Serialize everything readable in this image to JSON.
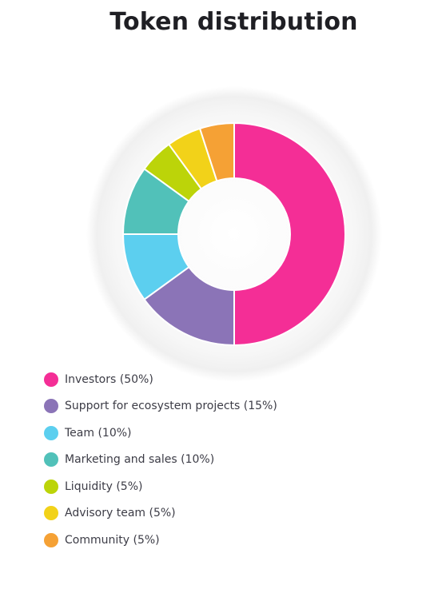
{
  "title": "Token distribution",
  "chart_data": {
    "type": "pie",
    "variant": "donut",
    "title": "Token distribution",
    "legend_position": "bottom-left",
    "slices": [
      {
        "label": "Investors (50%)",
        "value": 50,
        "color": "#f42e96"
      },
      {
        "label": "Support for ecosystem projects (15%)",
        "value": 15,
        "color": "#8b74b7"
      },
      {
        "label": "Team (10%)",
        "value": 10,
        "color": "#5ccfef"
      },
      {
        "label": "Marketing and sales (10%)",
        "value": 10,
        "color": "#51c1b9"
      },
      {
        "label": "Liquidity (5%)",
        "value": 5,
        "color": "#bcd409"
      },
      {
        "label": "Advisory team (5%)",
        "value": 5,
        "color": "#f2d219"
      },
      {
        "label": "Community (5%)",
        "value": 5,
        "color": "#f5a135"
      }
    ]
  }
}
